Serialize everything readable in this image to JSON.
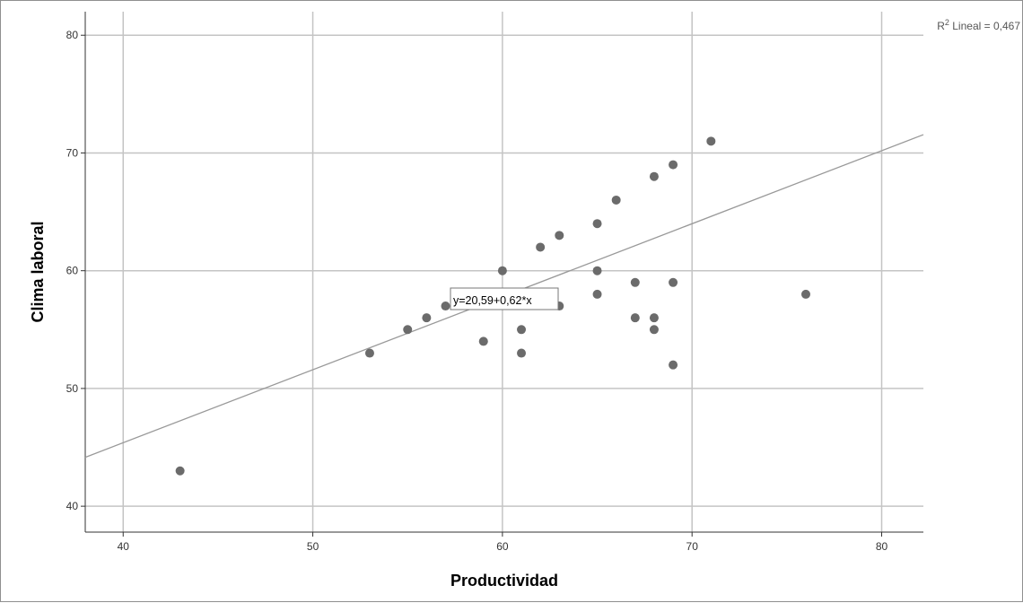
{
  "chart_data": {
    "type": "scatter",
    "title": "",
    "xlabel": "Productividad",
    "ylabel": "Clima laboral",
    "xlim": [
      38,
      82.2
    ],
    "ylim": [
      37.8,
      82
    ],
    "x_ticks": [
      40,
      50,
      60,
      70,
      80
    ],
    "y_ticks": [
      40,
      50,
      60,
      70,
      80
    ],
    "grid": true,
    "points": [
      {
        "x": 43,
        "y": 43
      },
      {
        "x": 53,
        "y": 53
      },
      {
        "x": 55,
        "y": 55
      },
      {
        "x": 56,
        "y": 56
      },
      {
        "x": 57,
        "y": 57
      },
      {
        "x": 59,
        "y": 54
      },
      {
        "x": 60,
        "y": 60
      },
      {
        "x": 61,
        "y": 55
      },
      {
        "x": 61,
        "y": 53
      },
      {
        "x": 62,
        "y": 62
      },
      {
        "x": 63,
        "y": 63
      },
      {
        "x": 63,
        "y": 57
      },
      {
        "x": 65,
        "y": 64
      },
      {
        "x": 65,
        "y": 60
      },
      {
        "x": 65,
        "y": 58
      },
      {
        "x": 66,
        "y": 66
      },
      {
        "x": 67,
        "y": 59
      },
      {
        "x": 67,
        "y": 56
      },
      {
        "x": 68,
        "y": 68
      },
      {
        "x": 68,
        "y": 56
      },
      {
        "x": 68,
        "y": 55
      },
      {
        "x": 69,
        "y": 69
      },
      {
        "x": 69,
        "y": 59
      },
      {
        "x": 69,
        "y": 52
      },
      {
        "x": 71,
        "y": 71
      },
      {
        "x": 76,
        "y": 58
      }
    ],
    "fit_line": {
      "intercept": 20.59,
      "slope": 0.62,
      "equation_label": "y=20,59+0,62*x"
    },
    "r2_label": {
      "prefix": "R",
      "superscript": "2",
      "text": " Lineal = 0,467"
    },
    "colors": {
      "points": "#6b6b6b",
      "fit_line": "#999999",
      "grid": "#c4c4c4",
      "axis": "#333333"
    }
  }
}
